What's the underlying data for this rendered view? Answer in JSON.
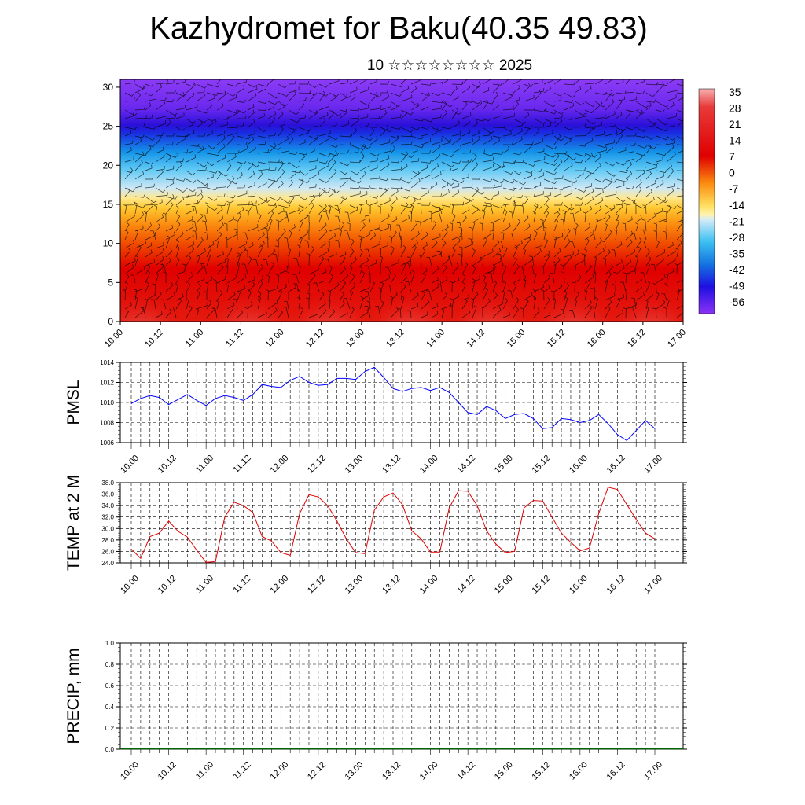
{
  "title": "Kazhydromet for Baku(40.35 49.83)",
  "subtitle": "10 ☆☆☆☆☆☆☆☆ 2025",
  "time_ticks": [
    "10.00",
    "10.12",
    "11.00",
    "11.12",
    "12.00",
    "12.12",
    "13.00",
    "13.12",
    "14.00",
    "14.12",
    "15.00",
    "15.12",
    "16.00",
    "16.12",
    "17.00"
  ],
  "chart_data": [
    {
      "type": "heatmap",
      "description_of_content": "height-time cross section of temperature with wind barbs",
      "x_ticks": [
        "10.00",
        "10.12",
        "11.00",
        "11.12",
        "12.00",
        "12.12",
        "13.00",
        "13.12",
        "14.00",
        "14.12",
        "15.00",
        "15.12",
        "16.00",
        "16.12",
        "17.00"
      ],
      "y_ticks": [
        0,
        5,
        10,
        15,
        20,
        25,
        30
      ],
      "ylim": [
        0,
        31
      ],
      "colorbar_labels": [
        "35",
        "28",
        "21",
        "14",
        "7",
        "0",
        "-7",
        "-14",
        "-21",
        "-28",
        "-35",
        "-42",
        "-49",
        "-56"
      ],
      "colors": {
        "warm": "#e00000",
        "hot": "#f7a0a0",
        "yellow": "#ffd23c",
        "cyan": "#19b4f0",
        "blue": "#1e1ee6",
        "violet": "#8c32f5"
      }
    },
    {
      "type": "line",
      "ylabel": "PMSL",
      "ylim": [
        1006,
        1014
      ],
      "y_ticks": [
        "1014",
        "1012",
        "1010",
        "1008",
        "1006"
      ],
      "x_ticks": [
        "10.00",
        "10.12",
        "11.00",
        "11.12",
        "12.00",
        "12.12",
        "13.00",
        "13.12",
        "14.00",
        "14.12",
        "15.00",
        "15.12",
        "16.00",
        "16.12",
        "17.00"
      ],
      "color": "#0000ff",
      "values": [
        1009.9,
        1010.4,
        1010.7,
        1010.5,
        1009.8,
        1010.3,
        1010.8,
        1010.2,
        1009.7,
        1010.4,
        1010.7,
        1010.5,
        1010.2,
        1010.8,
        1011.8,
        1011.6,
        1011.5,
        1012.2,
        1012.6,
        1012.0,
        1011.7,
        1011.8,
        1012.4,
        1012.4,
        1012.3,
        1013.1,
        1013.5,
        1012.5,
        1011.4,
        1011.1,
        1011.4,
        1011.5,
        1011.2,
        1011.5,
        1011.0,
        1010.0,
        1009.0,
        1008.8,
        1009.6,
        1009.2,
        1008.4,
        1008.8,
        1008.9,
        1008.4,
        1007.4,
        1007.5,
        1008.4,
        1008.3,
        1008.0,
        1008.2,
        1008.8,
        1007.9,
        1006.8,
        1006.2,
        1007.2,
        1008.2,
        1007.4
      ]
    },
    {
      "type": "line",
      "ylabel": "TEMP at 2 M",
      "ylim": [
        24,
        38
      ],
      "y_ticks": [
        "38.0",
        "36.0",
        "34.0",
        "32.0",
        "30.0",
        "28.0",
        "26.0",
        "24.0"
      ],
      "x_ticks": [
        "10.00",
        "10.12",
        "11.00",
        "11.12",
        "12.00",
        "12.12",
        "13.00",
        "13.12",
        "14.00",
        "14.12",
        "15.00",
        "15.12",
        "16.00",
        "16.12",
        "17.00"
      ],
      "color": "#e00000",
      "values": [
        26.4,
        24.8,
        28.6,
        29.2,
        31.3,
        29.5,
        28.5,
        26.2,
        24.1,
        24.2,
        32.0,
        34.6,
        34.0,
        32.8,
        28.6,
        27.8,
        25.8,
        25.3,
        32.6,
        35.9,
        35.5,
        34.0,
        31.3,
        28.2,
        25.8,
        25.6,
        33.2,
        35.5,
        36.2,
        34.2,
        29.6,
        28.2,
        25.9,
        25.9,
        33.6,
        36.6,
        36.5,
        34.0,
        29.6,
        27.3,
        25.8,
        26.0,
        33.6,
        34.9,
        34.8,
        32.0,
        29.2,
        27.6,
        26.1,
        26.6,
        32.6,
        37.2,
        36.8,
        34.2,
        31.6,
        29.2,
        28.2
      ]
    },
    {
      "type": "bar",
      "ylabel": "PRECIP, mm",
      "ylim": [
        0,
        1.0
      ],
      "y_ticks": [
        "1.0",
        "0.8",
        "0.6",
        "0.4",
        "0.2",
        "0.0"
      ],
      "x_ticks": [
        "10.00",
        "10.12",
        "11.00",
        "11.12",
        "12.00",
        "12.12",
        "13.00",
        "13.12",
        "14.00",
        "14.12",
        "15.00",
        "15.12",
        "16.00",
        "16.12",
        "17.00"
      ],
      "color": "#006400",
      "values": [
        0,
        0,
        0,
        0,
        0,
        0,
        0,
        0,
        0,
        0,
        0,
        0,
        0,
        0,
        0
      ]
    }
  ]
}
